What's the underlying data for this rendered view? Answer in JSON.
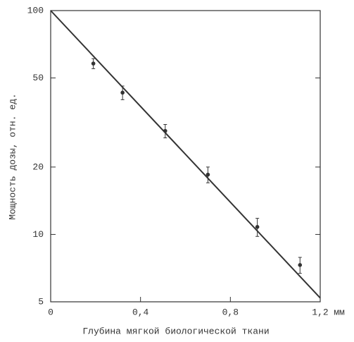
{
  "chart_data": {
    "type": "scatter",
    "x_label": "Глубина мягкой биологической ткани",
    "x_unit": "мм",
    "y_label": "Мощность дозы, отн. ед.",
    "log_y": true,
    "color": "#333333",
    "xlim": [
      0,
      1.2
    ],
    "xticks": [
      0,
      {
        "value": 0.4,
        "label": "0,4"
      },
      {
        "value": 0.8,
        "label": "0,8"
      },
      {
        "value": 1.2,
        "label": "1,2"
      }
    ],
    "ylim": [
      5,
      100
    ],
    "yticks": [
      100,
      50,
      20,
      10,
      5
    ],
    "points": {
      "x": [
        0.19,
        0.32,
        0.51,
        0.7,
        0.92,
        1.11
      ],
      "values": [
        58,
        43,
        29,
        18.5,
        10.8,
        7.3
      ],
      "errors": [
        3,
        3,
        2,
        1.5,
        1,
        0.6
      ]
    },
    "fit_line": {
      "x": [
        0,
        1.2
      ],
      "values": [
        100,
        5.2
      ]
    }
  }
}
